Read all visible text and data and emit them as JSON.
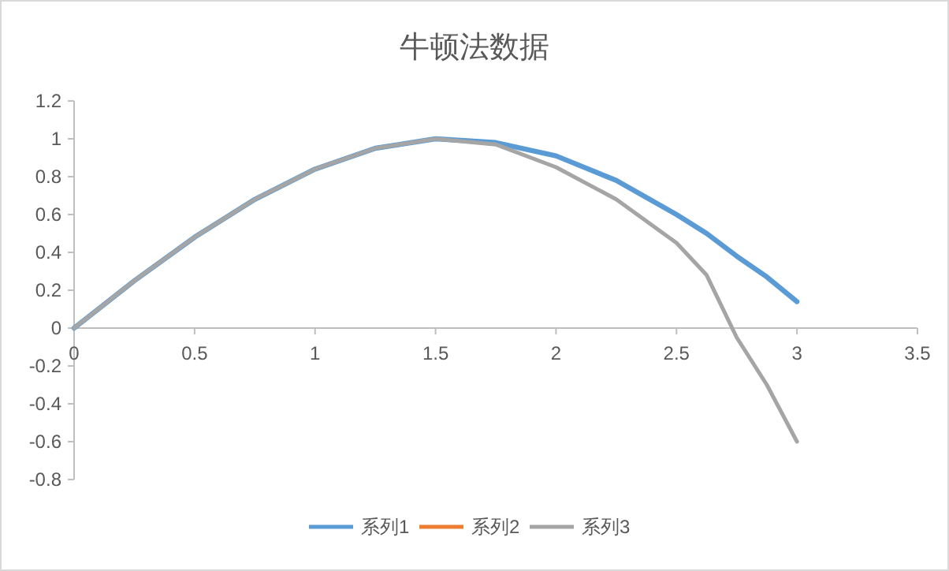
{
  "chart_data": {
    "type": "line",
    "title": "牛顿法数据",
    "x": [
      0,
      0.25,
      0.5,
      0.75,
      1,
      1.25,
      1.5,
      1.75,
      2,
      2.25,
      2.5,
      2.625,
      2.75,
      2.875,
      3
    ],
    "series": [
      {
        "name": "系列1",
        "color": "#5b9bd5",
        "values": [
          0,
          0.25,
          0.48,
          0.68,
          0.84,
          0.95,
          1.0,
          0.98,
          0.91,
          0.78,
          0.6,
          0.5,
          0.38,
          0.27,
          0.14
        ]
      },
      {
        "name": "系列2",
        "color": "#ed7d31",
        "values": [
          null,
          null,
          null,
          null,
          null,
          null,
          null,
          null,
          null,
          null,
          null,
          null,
          null,
          null,
          null
        ]
      },
      {
        "name": "系列3",
        "color": "#a5a5a5",
        "values": [
          0,
          0.25,
          0.48,
          0.68,
          0.84,
          0.95,
          1.0,
          0.97,
          0.85,
          0.68,
          0.45,
          0.28,
          -0.05,
          -0.3,
          -0.6
        ]
      }
    ],
    "xlim": [
      0,
      3.5
    ],
    "xticks": [
      0,
      0.5,
      1,
      1.5,
      2,
      2.5,
      3,
      3.5
    ],
    "ylim": [
      -0.8,
      1.2
    ],
    "yticks": [
      -0.8,
      -0.6,
      -0.4,
      -0.2,
      0,
      0.2,
      0.4,
      0.6,
      0.8,
      1,
      1.2
    ],
    "legend": "bottom"
  }
}
